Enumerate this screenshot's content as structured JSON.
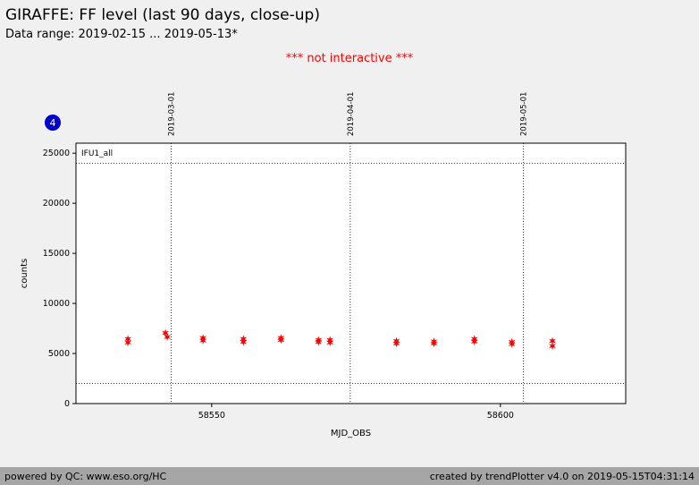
{
  "header": {
    "title": "GIRAFFE: FF level (last 90 days, close-up)",
    "subtitle": "Data range: 2019-02-15 ... 2019-05-13*",
    "notice": "*** not interactive ***",
    "badge_count": "4"
  },
  "colors": {
    "notice_text": "#ff0000",
    "marker": "#ff0000",
    "badge_bg": "#0000cd",
    "badge_text": "#ffffff",
    "page_bg": "#f0f0f0",
    "footer_bg": "#a6a6a6"
  },
  "chart_data": {
    "type": "scatter",
    "series_label": "IFU1_all",
    "xlabel": "MJD_OBS",
    "ylabel": "counts",
    "xlim": [
      58526.5,
      58621.7
    ],
    "ylim": [
      0,
      26000
    ],
    "yticks": [
      0,
      5000,
      10000,
      15000,
      20000,
      25000
    ],
    "xticks": [
      58550,
      58600
    ],
    "date_lines": [
      {
        "label": "2019-03-01",
        "mjd": 58543
      },
      {
        "label": "2019-04-01",
        "mjd": 58574
      },
      {
        "label": "2019-05-01",
        "mjd": 58604
      }
    ],
    "hlines": [
      24000,
      2000
    ],
    "grid": "dotted",
    "legend_position": "inside-top-left",
    "points": [
      [
        58535.5,
        6450
      ],
      [
        58535.5,
        6100
      ],
      [
        58542.0,
        7050
      ],
      [
        58542.3,
        6650
      ],
      [
        58548.5,
        6550
      ],
      [
        58548.5,
        6300
      ],
      [
        58555.5,
        6450
      ],
      [
        58555.5,
        6150
      ],
      [
        58562.0,
        6550
      ],
      [
        58562.0,
        6350
      ],
      [
        58568.5,
        6350
      ],
      [
        58568.5,
        6150
      ],
      [
        58570.5,
        6350
      ],
      [
        58570.5,
        6100
      ],
      [
        58582.0,
        6250
      ],
      [
        58582.0,
        6000
      ],
      [
        58588.5,
        6200
      ],
      [
        58588.5,
        6000
      ],
      [
        58595.5,
        6450
      ],
      [
        58595.5,
        6200
      ],
      [
        58602.0,
        6150
      ],
      [
        58602.0,
        5950
      ],
      [
        58609.0,
        6250
      ],
      [
        58609.0,
        5750
      ]
    ]
  },
  "footer": {
    "left": "powered by QC: www.eso.org/HC",
    "right": "created by trendPlotter v4.0 on 2019-05-15T04:31:14"
  }
}
